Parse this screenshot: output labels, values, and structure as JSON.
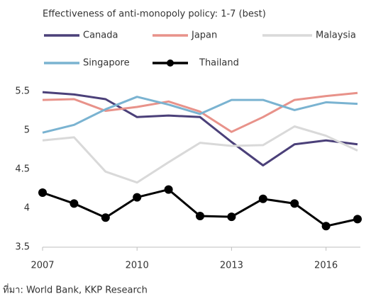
{
  "chart_data": {
    "type": "line",
    "title": "Effectiveness of anti-monopoly policy: 1-7 (best)",
    "source": "ที่มา: World Bank, KKP Research",
    "x": [
      2007,
      2008,
      2009,
      2010,
      2011,
      2012,
      2013,
      2014,
      2015,
      2016,
      2017
    ],
    "series": [
      {
        "name": "Canada",
        "color": "#4b4079",
        "values": [
          5.49,
          5.46,
          5.4,
          5.17,
          5.19,
          5.17,
          4.85,
          4.55,
          4.82,
          4.87,
          4.82
        ]
      },
      {
        "name": "Japan",
        "color": "#e8928a",
        "values": [
          5.39,
          5.4,
          5.25,
          5.3,
          5.37,
          5.24,
          4.98,
          5.17,
          5.39,
          5.44,
          5.48
        ]
      },
      {
        "name": "Malaysia",
        "color": "#d9d9d9",
        "values": [
          4.87,
          4.91,
          4.47,
          4.33,
          4.59,
          4.84,
          4.8,
          4.81,
          5.05,
          4.93,
          4.74
        ]
      },
      {
        "name": "Singapore",
        "color": "#7ab3d1",
        "values": [
          4.97,
          5.07,
          5.27,
          5.43,
          5.33,
          5.21,
          5.39,
          5.39,
          5.26,
          5.36,
          5.34
        ]
      },
      {
        "name": "Thailand",
        "color": "#000000",
        "markers": true,
        "values": [
          4.2,
          4.06,
          3.88,
          4.14,
          4.24,
          3.9,
          3.89,
          4.12,
          4.06,
          3.77,
          3.86
        ]
      }
    ],
    "xlim": [
      2007,
      2017
    ],
    "xticks": [
      2007,
      2010,
      2013,
      2016
    ],
    "ylim": [
      3.5,
      5.6
    ],
    "yticks": [
      3.5,
      4.0,
      4.5,
      5.0,
      5.5
    ],
    "grid": false
  }
}
